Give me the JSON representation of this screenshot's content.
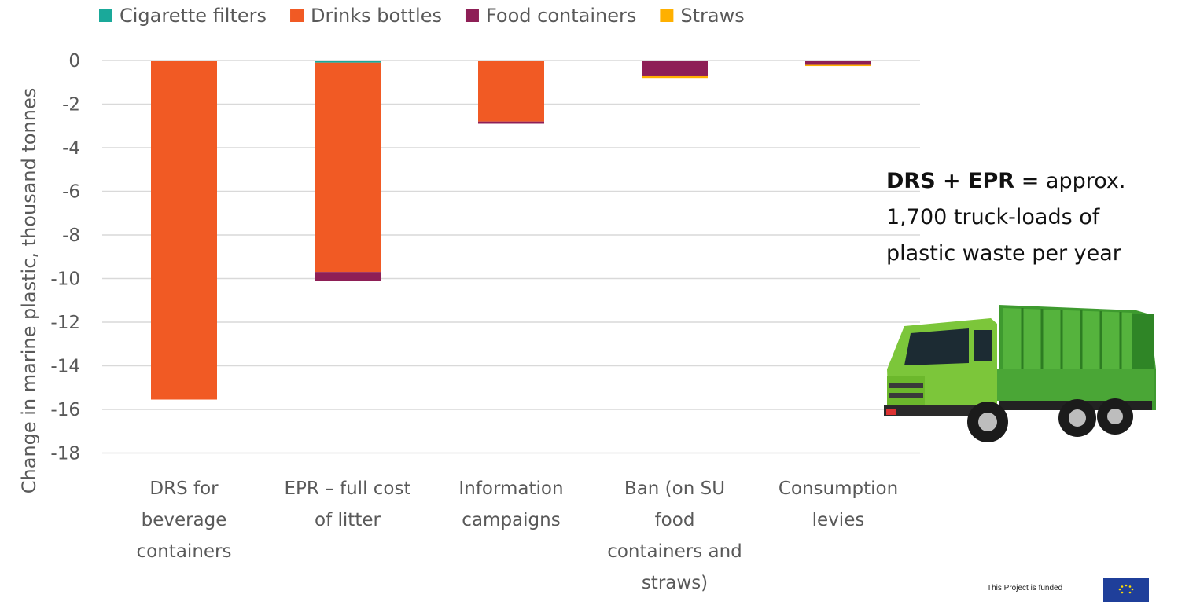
{
  "chart_data": {
    "type": "bar",
    "stacked": true,
    "ylabel": "Change in marine plastic, thousand tonnes",
    "ylim": [
      -18,
      0
    ],
    "yticks": [
      0,
      -2,
      -4,
      -6,
      -8,
      -10,
      -12,
      -14,
      -16,
      -18
    ],
    "grid": true,
    "legend_position": "top",
    "categories": [
      [
        "DRS for",
        "beverage",
        "containers"
      ],
      [
        "EPR – full cost",
        "of litter"
      ],
      [
        "Information",
        "campaigns"
      ],
      [
        "Ban (on SU",
        "food",
        "containers and",
        "straws)"
      ],
      [
        "Consumption",
        "levies"
      ]
    ],
    "series": [
      {
        "name": "Cigarette filters",
        "color": "#1aa99a",
        "values": [
          0,
          -0.1,
          0,
          0,
          0
        ]
      },
      {
        "name": "Drinks bottles",
        "color": "#f15a24",
        "values": [
          -15.55,
          -9.6,
          -2.8,
          0,
          0
        ]
      },
      {
        "name": "Food containers",
        "color": "#8e1f56",
        "values": [
          0,
          -0.4,
          -0.1,
          -0.72,
          -0.2
        ]
      },
      {
        "name": "Straws",
        "color": "#ffb000",
        "values": [
          0,
          0,
          0,
          -0.08,
          -0.05
        ]
      }
    ]
  },
  "callout": {
    "bold": "DRS + EPR",
    "rest_first": " = approx.",
    "line2": "1,700 truck-loads of",
    "line3": "plastic waste per year"
  },
  "truck_icon": "garbage-truck-icon",
  "footer": {
    "funded_text": "This Project is funded",
    "flag_icon": "eu-flag-icon"
  }
}
